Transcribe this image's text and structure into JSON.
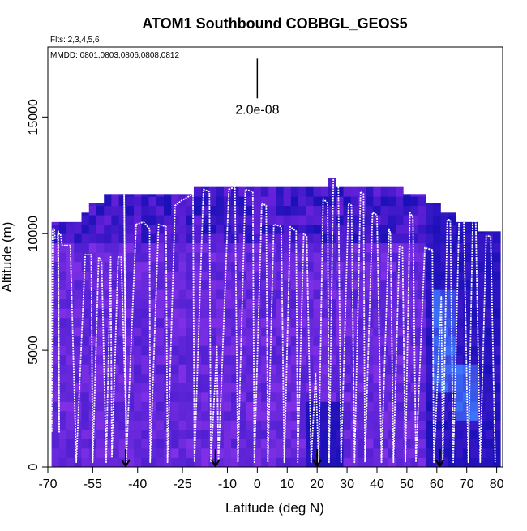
{
  "chart_data": {
    "type": "heatmap",
    "title": "ATOM1 Southbound COBBGL_GEOS5",
    "subtitle_flights": "Flts: 2,3,4,5,6",
    "subtitle_dates": "MMDD: 0801,0803,0806,0808,0812",
    "xlabel": "Latitude (deg N)",
    "ylabel": "Altitude (m)",
    "xlim": [
      -70,
      82
    ],
    "ylim": [
      0,
      18000
    ],
    "xticks": [
      -70,
      -55,
      -40,
      -25,
      -10,
      0,
      10,
      20,
      30,
      40,
      50,
      60,
      70,
      80
    ],
    "xtick_labels": [
      "-70",
      "-55",
      "-40",
      "-25",
      "-10",
      "0",
      "10",
      "20",
      "30",
      "40",
      "50",
      "60",
      "70",
      "80"
    ],
    "yticks": [
      0,
      5000,
      10000,
      15000
    ],
    "ytick_labels": [
      "0",
      "5000",
      "10000",
      "15000"
    ],
    "scale_bar_label": "2.0e-08",
    "scale_bar_x": 0,
    "scale_bar_y_range": [
      15800,
      17500
    ],
    "flight_markers_lat": [
      -44,
      -14,
      20,
      61
    ],
    "column_tops": [
      [
        -67.5,
        10500
      ],
      [
        -65,
        10500
      ],
      [
        -62.5,
        10500
      ],
      [
        -60,
        10500
      ],
      [
        -57.5,
        10900
      ],
      [
        -55,
        11300
      ],
      [
        -52.5,
        11300
      ],
      [
        -50,
        11700
      ],
      [
        -47.5,
        11700
      ],
      [
        -45,
        11700
      ],
      [
        -42.5,
        11700
      ],
      [
        -40,
        11700
      ],
      [
        -37.5,
        11700
      ],
      [
        -35,
        11700
      ],
      [
        -32.5,
        11700
      ],
      [
        -30,
        11700
      ],
      [
        -27.5,
        11700
      ],
      [
        -25,
        11700
      ],
      [
        -22.5,
        11700
      ],
      [
        -20,
        12000
      ],
      [
        -17.5,
        12000
      ],
      [
        -15,
        12000
      ],
      [
        -12.5,
        12000
      ],
      [
        -10,
        12000
      ],
      [
        -7.5,
        12000
      ],
      [
        -5,
        12000
      ],
      [
        -2.5,
        12000
      ],
      [
        0,
        12000
      ],
      [
        2.5,
        12000
      ],
      [
        5,
        12000
      ],
      [
        7.5,
        12000
      ],
      [
        10,
        12000
      ],
      [
        12.5,
        12000
      ],
      [
        15,
        12000
      ],
      [
        17.5,
        12000
      ],
      [
        20,
        12000
      ],
      [
        22.5,
        12000
      ],
      [
        25,
        12400
      ],
      [
        27.5,
        12000
      ],
      [
        30,
        12000
      ],
      [
        32.5,
        12000
      ],
      [
        35,
        12000
      ],
      [
        37.5,
        12000
      ],
      [
        40,
        12000
      ],
      [
        42.5,
        12000
      ],
      [
        45,
        12000
      ],
      [
        47.5,
        12000
      ],
      [
        50,
        11700
      ],
      [
        52.5,
        11700
      ],
      [
        55,
        11700
      ],
      [
        57.5,
        11300
      ],
      [
        60,
        11300
      ],
      [
        62.5,
        10900
      ],
      [
        65,
        10900
      ],
      [
        67.5,
        10500
      ],
      [
        70,
        10500
      ],
      [
        72.5,
        10500
      ],
      [
        75,
        10100
      ],
      [
        77.5,
        10100
      ],
      [
        80,
        10100
      ]
    ],
    "profile_path": [
      [
        -68.7,
        1500
      ],
      [
        -68.4,
        10200
      ],
      [
        -67.9,
        10200
      ],
      [
        -67.6,
        9800
      ],
      [
        -66.8,
        9800
      ],
      [
        -66.5,
        10100
      ],
      [
        -66.2,
        1500
      ],
      [
        -66.6,
        10000
      ],
      [
        -65.8,
        10000
      ],
      [
        -65.2,
        9500
      ],
      [
        -62.5,
        9500
      ],
      [
        -60.5,
        200
      ],
      [
        -57.5,
        9100
      ],
      [
        -55.5,
        9100
      ],
      [
        -55.0,
        200
      ],
      [
        -53.0,
        9000
      ],
      [
        -52.0,
        8800
      ],
      [
        -50.5,
        200
      ],
      [
        -49.0,
        9000
      ],
      [
        -48.6,
        400
      ],
      [
        -46.5,
        9000
      ],
      [
        -45.5,
        9000
      ],
      [
        -43.8,
        1800
      ],
      [
        -44.5,
        11800
      ],
      [
        -43.8,
        200
      ],
      [
        -40.5,
        10400
      ],
      [
        -38.0,
        10500
      ],
      [
        -36.0,
        10200
      ],
      [
        -35.8,
        200
      ],
      [
        -33.0,
        10400
      ],
      [
        -30.5,
        10300
      ],
      [
        -30.0,
        200
      ],
      [
        -27.5,
        11200
      ],
      [
        -25.5,
        11400
      ],
      [
        -21.5,
        11700
      ],
      [
        -21.0,
        200
      ],
      [
        -18.0,
        11900
      ],
      [
        -16.0,
        11800
      ],
      [
        -15.5,
        200
      ],
      [
        -13.5,
        5200
      ],
      [
        -13.0,
        200
      ],
      [
        -9.5,
        11900
      ],
      [
        -7.5,
        12000
      ],
      [
        -6.5,
        200
      ],
      [
        -4.0,
        11900
      ],
      [
        -1.5,
        11800
      ],
      [
        -1.0,
        200
      ],
      [
        1.5,
        11300
      ],
      [
        3.0,
        11200
      ],
      [
        3.5,
        200
      ],
      [
        5.5,
        10400
      ],
      [
        8.0,
        10300
      ],
      [
        9.0,
        200
      ],
      [
        11.0,
        10300
      ],
      [
        13.0,
        10100
      ],
      [
        13.5,
        200
      ],
      [
        15.5,
        10000
      ],
      [
        16.5,
        9900
      ],
      [
        18.0,
        200
      ],
      [
        19.5,
        4000
      ],
      [
        20.5,
        200
      ],
      [
        22.0,
        11500
      ],
      [
        23.5,
        11300
      ],
      [
        24.0,
        200
      ],
      [
        25.5,
        13100
      ],
      [
        27.0,
        13100
      ],
      [
        28.0,
        200
      ],
      [
        30.5,
        11300
      ],
      [
        31.5,
        11200
      ],
      [
        32.5,
        200
      ],
      [
        34.5,
        11800
      ],
      [
        35.5,
        11700
      ],
      [
        36.0,
        200
      ],
      [
        38.5,
        10900
      ],
      [
        40.0,
        10800
      ],
      [
        41.5,
        200
      ],
      [
        44.0,
        10200
      ],
      [
        44.5,
        10000
      ],
      [
        45.5,
        200
      ],
      [
        47.5,
        9500
      ],
      [
        48.5,
        9400
      ],
      [
        49.5,
        200
      ],
      [
        51.0,
        10900
      ],
      [
        52.0,
        10700
      ],
      [
        53.0,
        200
      ],
      [
        56.0,
        9400
      ],
      [
        58.5,
        9300
      ],
      [
        59.0,
        200
      ],
      [
        61.5,
        7300
      ],
      [
        62.0,
        200
      ],
      [
        63.5,
        10600
      ],
      [
        64.5,
        10600
      ],
      [
        65.5,
        200
      ],
      [
        67.5,
        10900
      ],
      [
        69.0,
        10700
      ],
      [
        70.5,
        200
      ],
      [
        72.0,
        10600
      ],
      [
        73.0,
        10500
      ],
      [
        74.5,
        200
      ],
      [
        76.5,
        9900
      ],
      [
        78.0,
        9900
      ],
      [
        79.5,
        200
      ]
    ],
    "colors": {
      "deep_blue": "#1a10b8",
      "mid_blue": "#3a18c8",
      "purple": "#6a22dc",
      "violet": "#8030e6",
      "light_blue": "#3a7cff",
      "profile": "#ffffff",
      "axis": "#000000"
    }
  }
}
